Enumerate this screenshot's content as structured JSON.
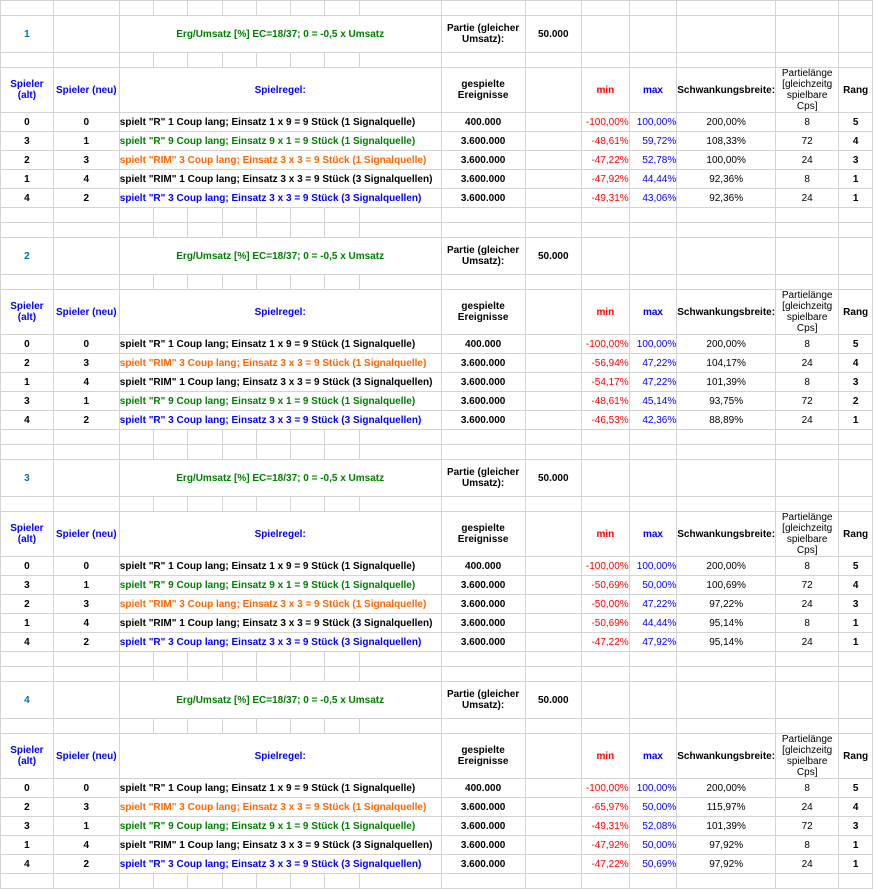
{
  "hdr": {
    "formula": "Erg/Umsatz [%] EC=18/37; 0 = -0,5 x Umsatz",
    "partieGleicher": "Partie (gleicher Umsatz):",
    "val50": "50.000",
    "spielerAlt": "Spieler (alt)",
    "spielerNeu": "Spieler (neu)",
    "spielregel": "Spielregel:",
    "gespielteEreignisse": "gespielte Ereignisse",
    "min": "min",
    "max": "max",
    "schwankungsbreite": "Schwankungsbreite:",
    "partielange": "Partielänge [gleichzeitg spielbare Cps]",
    "rang": "Rang"
  },
  "b": [
    {
      "n": "1",
      "rows": [
        {
          "alt": "0",
          "neu": "0",
          "regel": "spielt \"R\" 1 Coup lang; Einsatz 1 x 9 = 9 Stück (1 Signalquelle)",
          "c": "",
          "ev": "400.000",
          "min": "-100,00%",
          "max": "100,00%",
          "sb": "200,00%",
          "pl": "8",
          "r": "5"
        },
        {
          "alt": "3",
          "neu": "1",
          "regel": "spielt \"R\" 9 Coup lang; Einsatz 9 x 1 = 9 Stück (1 Signalquelle)",
          "c": "green",
          "ev": "3.600.000",
          "min": "-48,61%",
          "max": "59,72%",
          "sb": "108,33%",
          "pl": "72",
          "r": "4"
        },
        {
          "alt": "2",
          "neu": "3",
          "regel": "spielt \"RIM\" 3 Coup lang; Einsatz 3 x 3 = 9  Stück (1 Signalquelle)",
          "c": "orange",
          "ev": "3.600.000",
          "min": "-47,22%",
          "max": "52,78%",
          "sb": "100,00%",
          "pl": "24",
          "r": "3"
        },
        {
          "alt": "1",
          "neu": "4",
          "regel": "spielt \"RIM\" 1 Coup lang; Einsatz 3 x 3 = 9 Stück (3 Signalquellen)",
          "c": "",
          "ev": "3.600.000",
          "min": "-47,92%",
          "max": "44,44%",
          "sb": "92,36%",
          "pl": "8",
          "r": "1"
        },
        {
          "alt": "4",
          "neu": "2",
          "regel": "spielt \"R\" 3 Coup lang; Einsatz 3 x 3 = 9 Stück (3 Signalquellen)",
          "c": "blue",
          "ev": "3.600.000",
          "min": "-49,31%",
          "max": "43,06%",
          "sb": "92,36%",
          "pl": "24",
          "r": "1"
        }
      ]
    },
    {
      "n": "2",
      "rows": [
        {
          "alt": "0",
          "neu": "0",
          "regel": "spielt \"R\" 1 Coup lang; Einsatz 1 x 9 = 9 Stück (1 Signalquelle)",
          "c": "",
          "ev": "400.000",
          "min": "-100,00%",
          "max": "100,00%",
          "sb": "200,00%",
          "pl": "8",
          "r": "5"
        },
        {
          "alt": "2",
          "neu": "3",
          "regel": "spielt \"RIM\" 3 Coup lang; Einsatz 3 x 3 = 9  Stück (1 Signalquelle)",
          "c": "orange",
          "ev": "3.600.000",
          "min": "-56,94%",
          "max": "47,22%",
          "sb": "104,17%",
          "pl": "24",
          "r": "4"
        },
        {
          "alt": "1",
          "neu": "4",
          "regel": "spielt \"RIM\" 1 Coup lang; Einsatz 3 x 3 = 9 Stück (3 Signalquellen)",
          "c": "",
          "ev": "3.600.000",
          "min": "-54,17%",
          "max": "47,22%",
          "sb": "101,39%",
          "pl": "8",
          "r": "3"
        },
        {
          "alt": "3",
          "neu": "1",
          "regel": "spielt \"R\" 9 Coup lang; Einsatz 9 x 1 = 9 Stück (1 Signalquelle)",
          "c": "green",
          "ev": "3.600.000",
          "min": "-48,61%",
          "max": "45,14%",
          "sb": "93,75%",
          "pl": "72",
          "r": "2"
        },
        {
          "alt": "4",
          "neu": "2",
          "regel": "spielt \"R\" 3 Coup lang; Einsatz 3 x 3 = 9 Stück (3 Signalquellen)",
          "c": "blue",
          "ev": "3.600.000",
          "min": "-46,53%",
          "max": "42,36%",
          "sb": "88,89%",
          "pl": "24",
          "r": "1"
        }
      ]
    },
    {
      "n": "3",
      "rows": [
        {
          "alt": "0",
          "neu": "0",
          "regel": "spielt \"R\" 1 Coup lang; Einsatz 1 x 9 = 9 Stück (1 Signalquelle)",
          "c": "",
          "ev": "400.000",
          "min": "-100,00%",
          "max": "100,00%",
          "sb": "200,00%",
          "pl": "8",
          "r": "5"
        },
        {
          "alt": "3",
          "neu": "1",
          "regel": "spielt \"R\" 9 Coup lang; Einsatz 9 x 1 = 9 Stück (1 Signalquelle)",
          "c": "green",
          "ev": "3.600.000",
          "min": "-50,69%",
          "max": "50,00%",
          "sb": "100,69%",
          "pl": "72",
          "r": "4"
        },
        {
          "alt": "2",
          "neu": "3",
          "regel": "spielt \"RIM\" 3 Coup lang; Einsatz 3 x 3 = 9  Stück (1 Signalquelle)",
          "c": "orange",
          "ev": "3.600.000",
          "min": "-50,00%",
          "max": "47,22%",
          "sb": "97,22%",
          "pl": "24",
          "r": "3"
        },
        {
          "alt": "1",
          "neu": "4",
          "regel": "spielt \"RIM\" 1 Coup lang; Einsatz 3 x 3 = 9 Stück (3 Signalquellen)",
          "c": "",
          "ev": "3.600.000",
          "min": "-50,69%",
          "max": "44,44%",
          "sb": "95,14%",
          "pl": "8",
          "r": "1"
        },
        {
          "alt": "4",
          "neu": "2",
          "regel": "spielt \"R\" 3 Coup lang; Einsatz 3 x 3 = 9 Stück (3 Signalquellen)",
          "c": "blue",
          "ev": "3.600.000",
          "min": "-47,22%",
          "max": "47,92%",
          "sb": "95,14%",
          "pl": "24",
          "r": "1"
        }
      ]
    },
    {
      "n": "4",
      "rows": [
        {
          "alt": "0",
          "neu": "0",
          "regel": "spielt \"R\" 1 Coup lang; Einsatz 1 x 9 = 9 Stück (1 Signalquelle)",
          "c": "",
          "ev": "400.000",
          "min": "-100,00%",
          "max": "100,00%",
          "sb": "200,00%",
          "pl": "8",
          "r": "5"
        },
        {
          "alt": "2",
          "neu": "3",
          "regel": "spielt \"RIM\" 3 Coup lang; Einsatz 3 x 3 = 9  Stück (1 Signalquelle)",
          "c": "orange",
          "ev": "3.600.000",
          "min": "-65,97%",
          "max": "50,00%",
          "sb": "115,97%",
          "pl": "24",
          "r": "4"
        },
        {
          "alt": "3",
          "neu": "1",
          "regel": "spielt \"R\" 9 Coup lang; Einsatz 9 x 1 = 9 Stück (1 Signalquelle)",
          "c": "green",
          "ev": "3.600.000",
          "min": "-49,31%",
          "max": "52,08%",
          "sb": "101,39%",
          "pl": "72",
          "r": "3"
        },
        {
          "alt": "1",
          "neu": "4",
          "regel": "spielt \"RIM\" 1 Coup lang; Einsatz 3 x 3 = 9 Stück (3 Signalquellen)",
          "c": "",
          "ev": "3.600.000",
          "min": "-47,92%",
          "max": "50,00%",
          "sb": "97,92%",
          "pl": "8",
          "r": "1"
        },
        {
          "alt": "4",
          "neu": "2",
          "regel": "spielt \"R\" 3 Coup lang; Einsatz 3 x 3 = 9 Stück (3 Signalquellen)",
          "c": "blue",
          "ev": "3.600.000",
          "min": "-47,22%",
          "max": "50,69%",
          "sb": "97,92%",
          "pl": "24",
          "r": "1"
        }
      ]
    }
  ]
}
